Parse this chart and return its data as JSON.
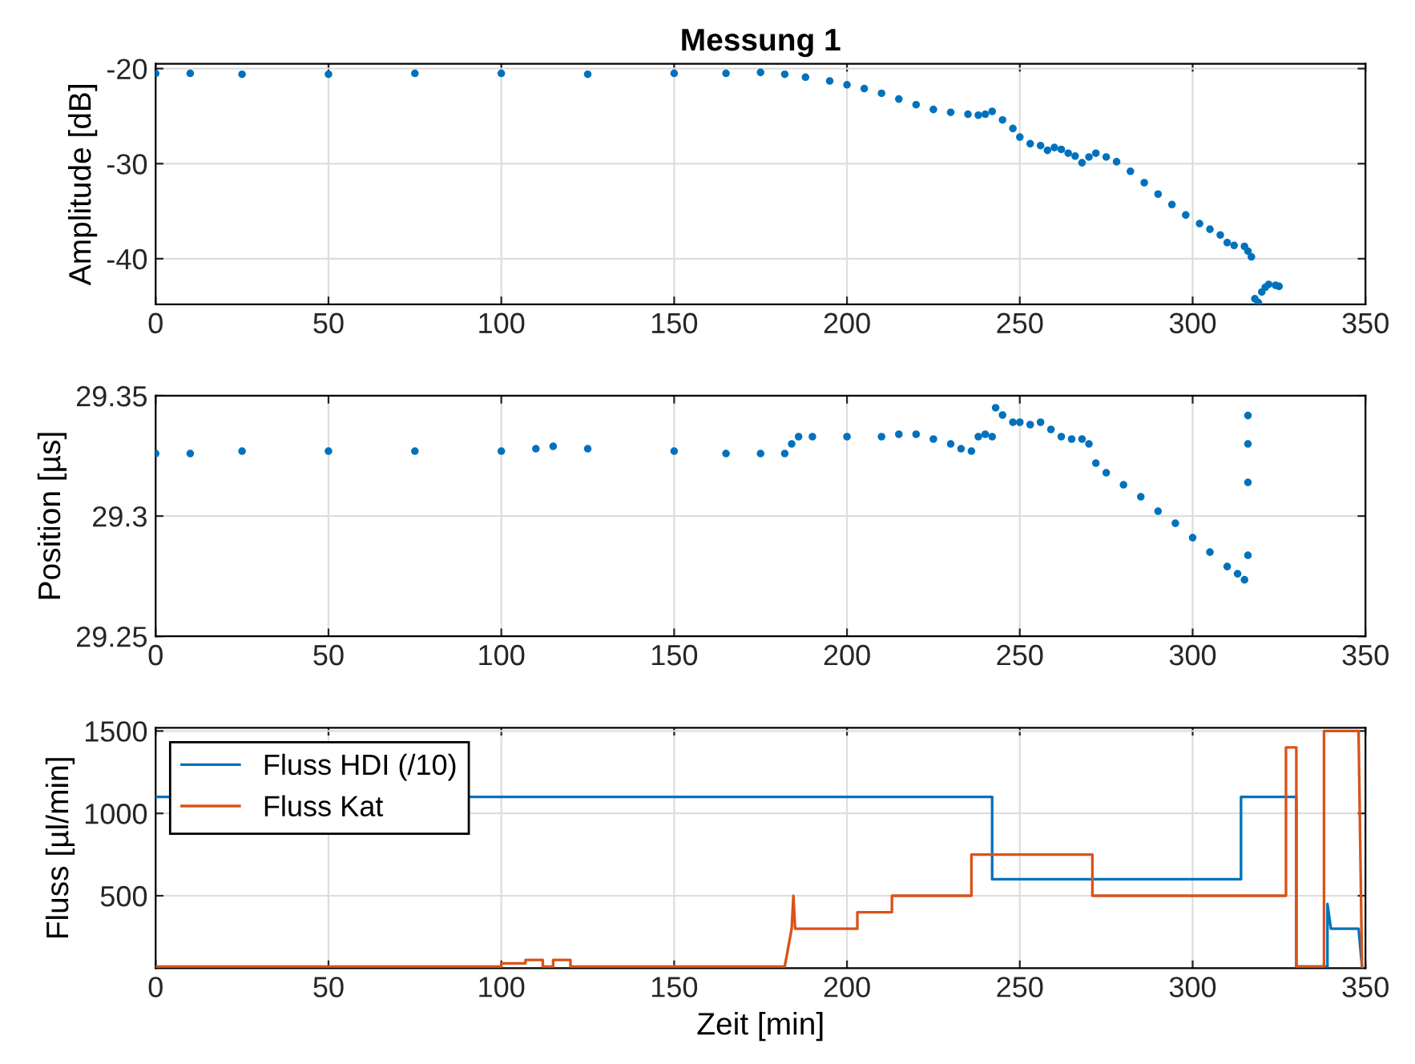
{
  "chart_data": [
    {
      "type": "scatter",
      "title": "Messung 1",
      "ylabel": "Amplitude [dB]",
      "xlim": [
        0,
        350
      ],
      "xticks": [
        0,
        50,
        100,
        150,
        200,
        250,
        300,
        350
      ],
      "ylim": [
        -44.8,
        -19.5
      ],
      "yticks": [
        -40,
        -30,
        -20
      ],
      "grid": true,
      "marker": "circle",
      "series": [
        {
          "color": "#0072bd",
          "x": [
            0,
            10,
            25,
            50,
            75,
            100,
            125,
            150,
            165,
            175,
            182,
            188,
            195,
            200,
            205,
            210,
            215,
            220,
            225,
            230,
            235,
            238,
            240,
            242,
            245,
            248,
            250,
            253,
            256,
            258,
            260,
            262,
            264,
            266,
            268,
            270,
            272,
            275,
            278,
            282,
            286,
            290,
            294,
            298,
            302,
            305,
            308,
            310,
            312,
            315,
            316,
            317,
            318,
            319,
            320,
            321,
            322,
            324,
            325
          ],
          "values": [
            -20.5,
            -20.5,
            -20.6,
            -20.6,
            -20.5,
            -20.5,
            -20.6,
            -20.5,
            -20.5,
            -20.4,
            -20.6,
            -20.9,
            -21.3,
            -21.7,
            -22.1,
            -22.6,
            -23.2,
            -23.8,
            -24.3,
            -24.6,
            -24.8,
            -24.9,
            -24.8,
            -24.5,
            -25.4,
            -26.3,
            -27.2,
            -27.9,
            -28.1,
            -28.6,
            -28.3,
            -28.5,
            -28.9,
            -29.2,
            -29.9,
            -29.3,
            -28.9,
            -29.3,
            -29.8,
            -30.8,
            -32.0,
            -33.2,
            -34.3,
            -35.4,
            -36.3,
            -36.9,
            -37.5,
            -38.3,
            -38.6,
            -38.7,
            -39.2,
            -39.8,
            -44.2,
            -44.6,
            -43.5,
            -43.0,
            -42.7,
            -42.8,
            -42.9
          ]
        }
      ]
    },
    {
      "type": "scatter",
      "ylabel": "Position [µs]",
      "xlim": [
        0,
        350
      ],
      "xticks": [
        0,
        50,
        100,
        150,
        200,
        250,
        300,
        350
      ],
      "ylim": [
        29.25,
        29.35
      ],
      "yticks": [
        29.25,
        29.3,
        29.35
      ],
      "grid": true,
      "marker": "circle",
      "series": [
        {
          "color": "#0072bd",
          "x": [
            0,
            10,
            25,
            50,
            75,
            100,
            110,
            115,
            125,
            150,
            165,
            175,
            182,
            184,
            186,
            190,
            200,
            210,
            215,
            220,
            225,
            230,
            233,
            236,
            238,
            240,
            242,
            243,
            245,
            248,
            250,
            253,
            256,
            259,
            262,
            265,
            268,
            270,
            272,
            275,
            280,
            285,
            290,
            295,
            300,
            305,
            310,
            313,
            315,
            316,
            316,
            316,
            316
          ],
          "values": [
            29.326,
            29.326,
            29.327,
            29.327,
            29.327,
            29.327,
            29.328,
            29.329,
            29.328,
            29.327,
            29.326,
            29.326,
            29.326,
            29.33,
            29.333,
            29.333,
            29.333,
            29.333,
            29.334,
            29.334,
            29.332,
            29.33,
            29.328,
            29.327,
            29.333,
            29.334,
            29.333,
            29.345,
            29.342,
            29.339,
            29.339,
            29.338,
            29.339,
            29.336,
            29.333,
            29.332,
            29.332,
            29.33,
            29.322,
            29.318,
            29.313,
            29.308,
            29.302,
            29.297,
            29.291,
            29.285,
            29.279,
            29.276,
            29.2735,
            29.3418,
            29.33,
            29.314,
            29.2837
          ]
        }
      ]
    },
    {
      "type": "line",
      "xlabel": "Zeit [min]",
      "ylabel": "Fluss [µl/min]",
      "xlim": [
        0,
        350
      ],
      "xticks": [
        0,
        50,
        100,
        150,
        200,
        250,
        300,
        350
      ],
      "ylim": [
        60,
        1520
      ],
      "yticks": [
        500,
        1000,
        1500
      ],
      "grid": true,
      "legend": "top left",
      "series": [
        {
          "name": "Fluss HDI (/10)",
          "color": "#0072bd",
          "x": [
            0,
            242,
            242,
            314,
            314,
            330,
            330,
            339,
            339,
            340,
            348,
            349
          ],
          "values": [
            1100,
            1100,
            600,
            600,
            1100,
            1100,
            70,
            70,
            450,
            300,
            300,
            70
          ]
        },
        {
          "name": "Fluss Kat",
          "color": "#d95319",
          "x": [
            0,
            100,
            100,
            107,
            107,
            112,
            112,
            115,
            115,
            120,
            120,
            182,
            184,
            184.5,
            185,
            203,
            203,
            213,
            213,
            236,
            236,
            271,
            271,
            327,
            327,
            330,
            330,
            338,
            338,
            348,
            349
          ],
          "values": [
            70,
            70,
            90,
            90,
            110,
            110,
            70,
            70,
            110,
            110,
            70,
            70,
            300,
            500,
            300,
            300,
            400,
            400,
            500,
            500,
            750,
            750,
            500,
            500,
            1400,
            1400,
            70,
            70,
            1500,
            1500,
            70
          ]
        }
      ]
    }
  ]
}
